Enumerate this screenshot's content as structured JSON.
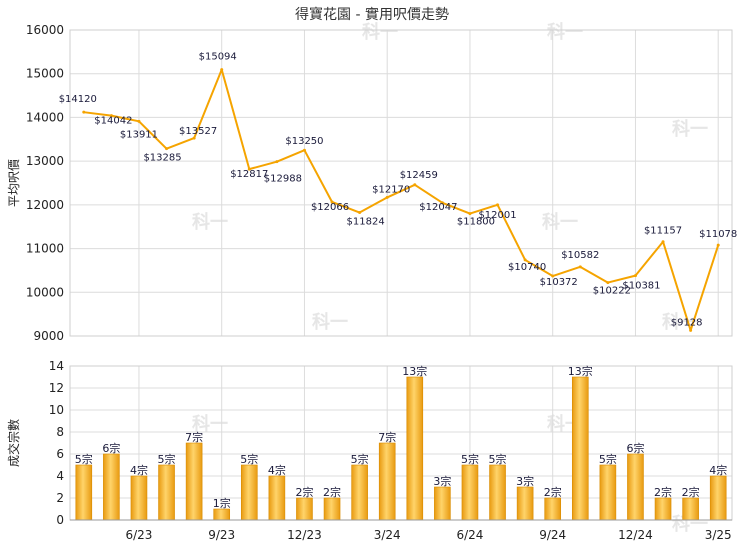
{
  "chart_data": [
    {
      "type": "line",
      "title": "得寶花園 - 實用呎價走勢",
      "ylabel": "平均呎價",
      "ylim": [
        9000,
        16000
      ],
      "yticks": [
        9000,
        10000,
        11000,
        12000,
        13000,
        14000,
        15000,
        16000
      ],
      "grid": true,
      "color": "#f5a400",
      "values": [
        14120,
        14042,
        13911,
        13285,
        13527,
        15094,
        12817,
        12988,
        13250,
        12066,
        11824,
        12170,
        12459,
        12047,
        11800,
        12001,
        10740,
        10372,
        10582,
        10222,
        10381,
        11157,
        9128,
        11078
      ],
      "labels": [
        "$14120",
        "$14042",
        "$13911",
        "$13285",
        "$13527",
        "$15094",
        "$12817",
        "$12988",
        "$13250",
        "$12066",
        "$11824",
        "$12170",
        "$12459",
        "$12047",
        "$11800",
        "$12001",
        "$10740",
        "$10372",
        "$10582",
        "$10222",
        "$10381",
        "$11157",
        "$9128",
        "$11078"
      ]
    },
    {
      "type": "bar",
      "ylabel": "成交宗數",
      "ylim": [
        0,
        14
      ],
      "yticks": [
        0,
        2,
        4,
        6,
        8,
        10,
        12,
        14
      ],
      "grid": true,
      "color": "#f2a81d",
      "values": [
        5,
        6,
        4,
        5,
        7,
        1,
        5,
        4,
        2,
        2,
        5,
        7,
        13,
        3,
        5,
        5,
        3,
        2,
        13,
        5,
        6,
        2,
        2,
        4
      ],
      "labels": [
        "5宗",
        "6宗",
        "4宗",
        "5宗",
        "7宗",
        "1宗",
        "5宗",
        "4宗",
        "2宗",
        "2宗",
        "5宗",
        "7宗",
        "13宗",
        "3宗",
        "5宗",
        "5宗",
        "3宗",
        "2宗",
        "13宗",
        "5宗",
        "6宗",
        "2宗",
        "2宗",
        "4宗"
      ],
      "xticks": [
        {
          "label": "6/23",
          "index": 2
        },
        {
          "label": "9/23",
          "index": 5
        },
        {
          "label": "12/23",
          "index": 8
        },
        {
          "label": "3/24",
          "index": 11
        },
        {
          "label": "6/24",
          "index": 14
        },
        {
          "label": "9/24",
          "index": 17
        },
        {
          "label": "12/24",
          "index": 20
        },
        {
          "label": "3/25",
          "index": 23
        }
      ]
    }
  ],
  "watermark": "科一"
}
